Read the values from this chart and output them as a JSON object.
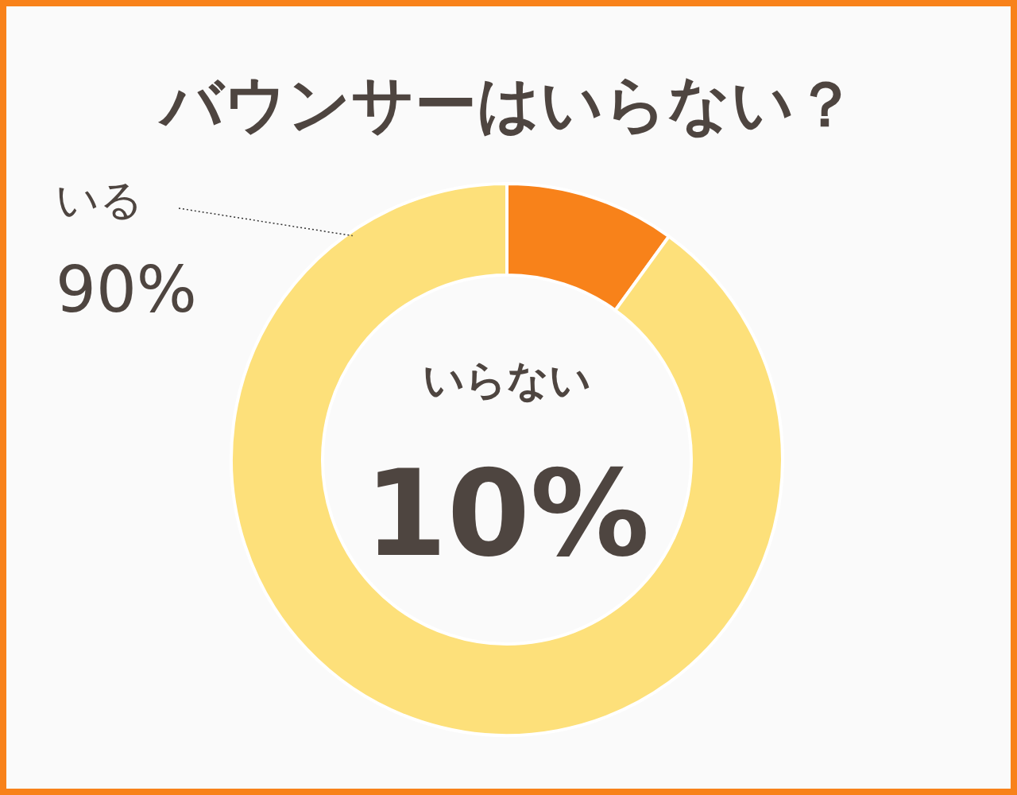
{
  "chart_data": {
    "type": "donut",
    "title": "バウンサーはいらない？",
    "categories": [
      "いらない",
      "いる"
    ],
    "values": [
      10,
      90
    ],
    "colors": [
      "#f8821a",
      "#fde07a"
    ],
    "value_labels": [
      "10%",
      "90%"
    ]
  }
}
